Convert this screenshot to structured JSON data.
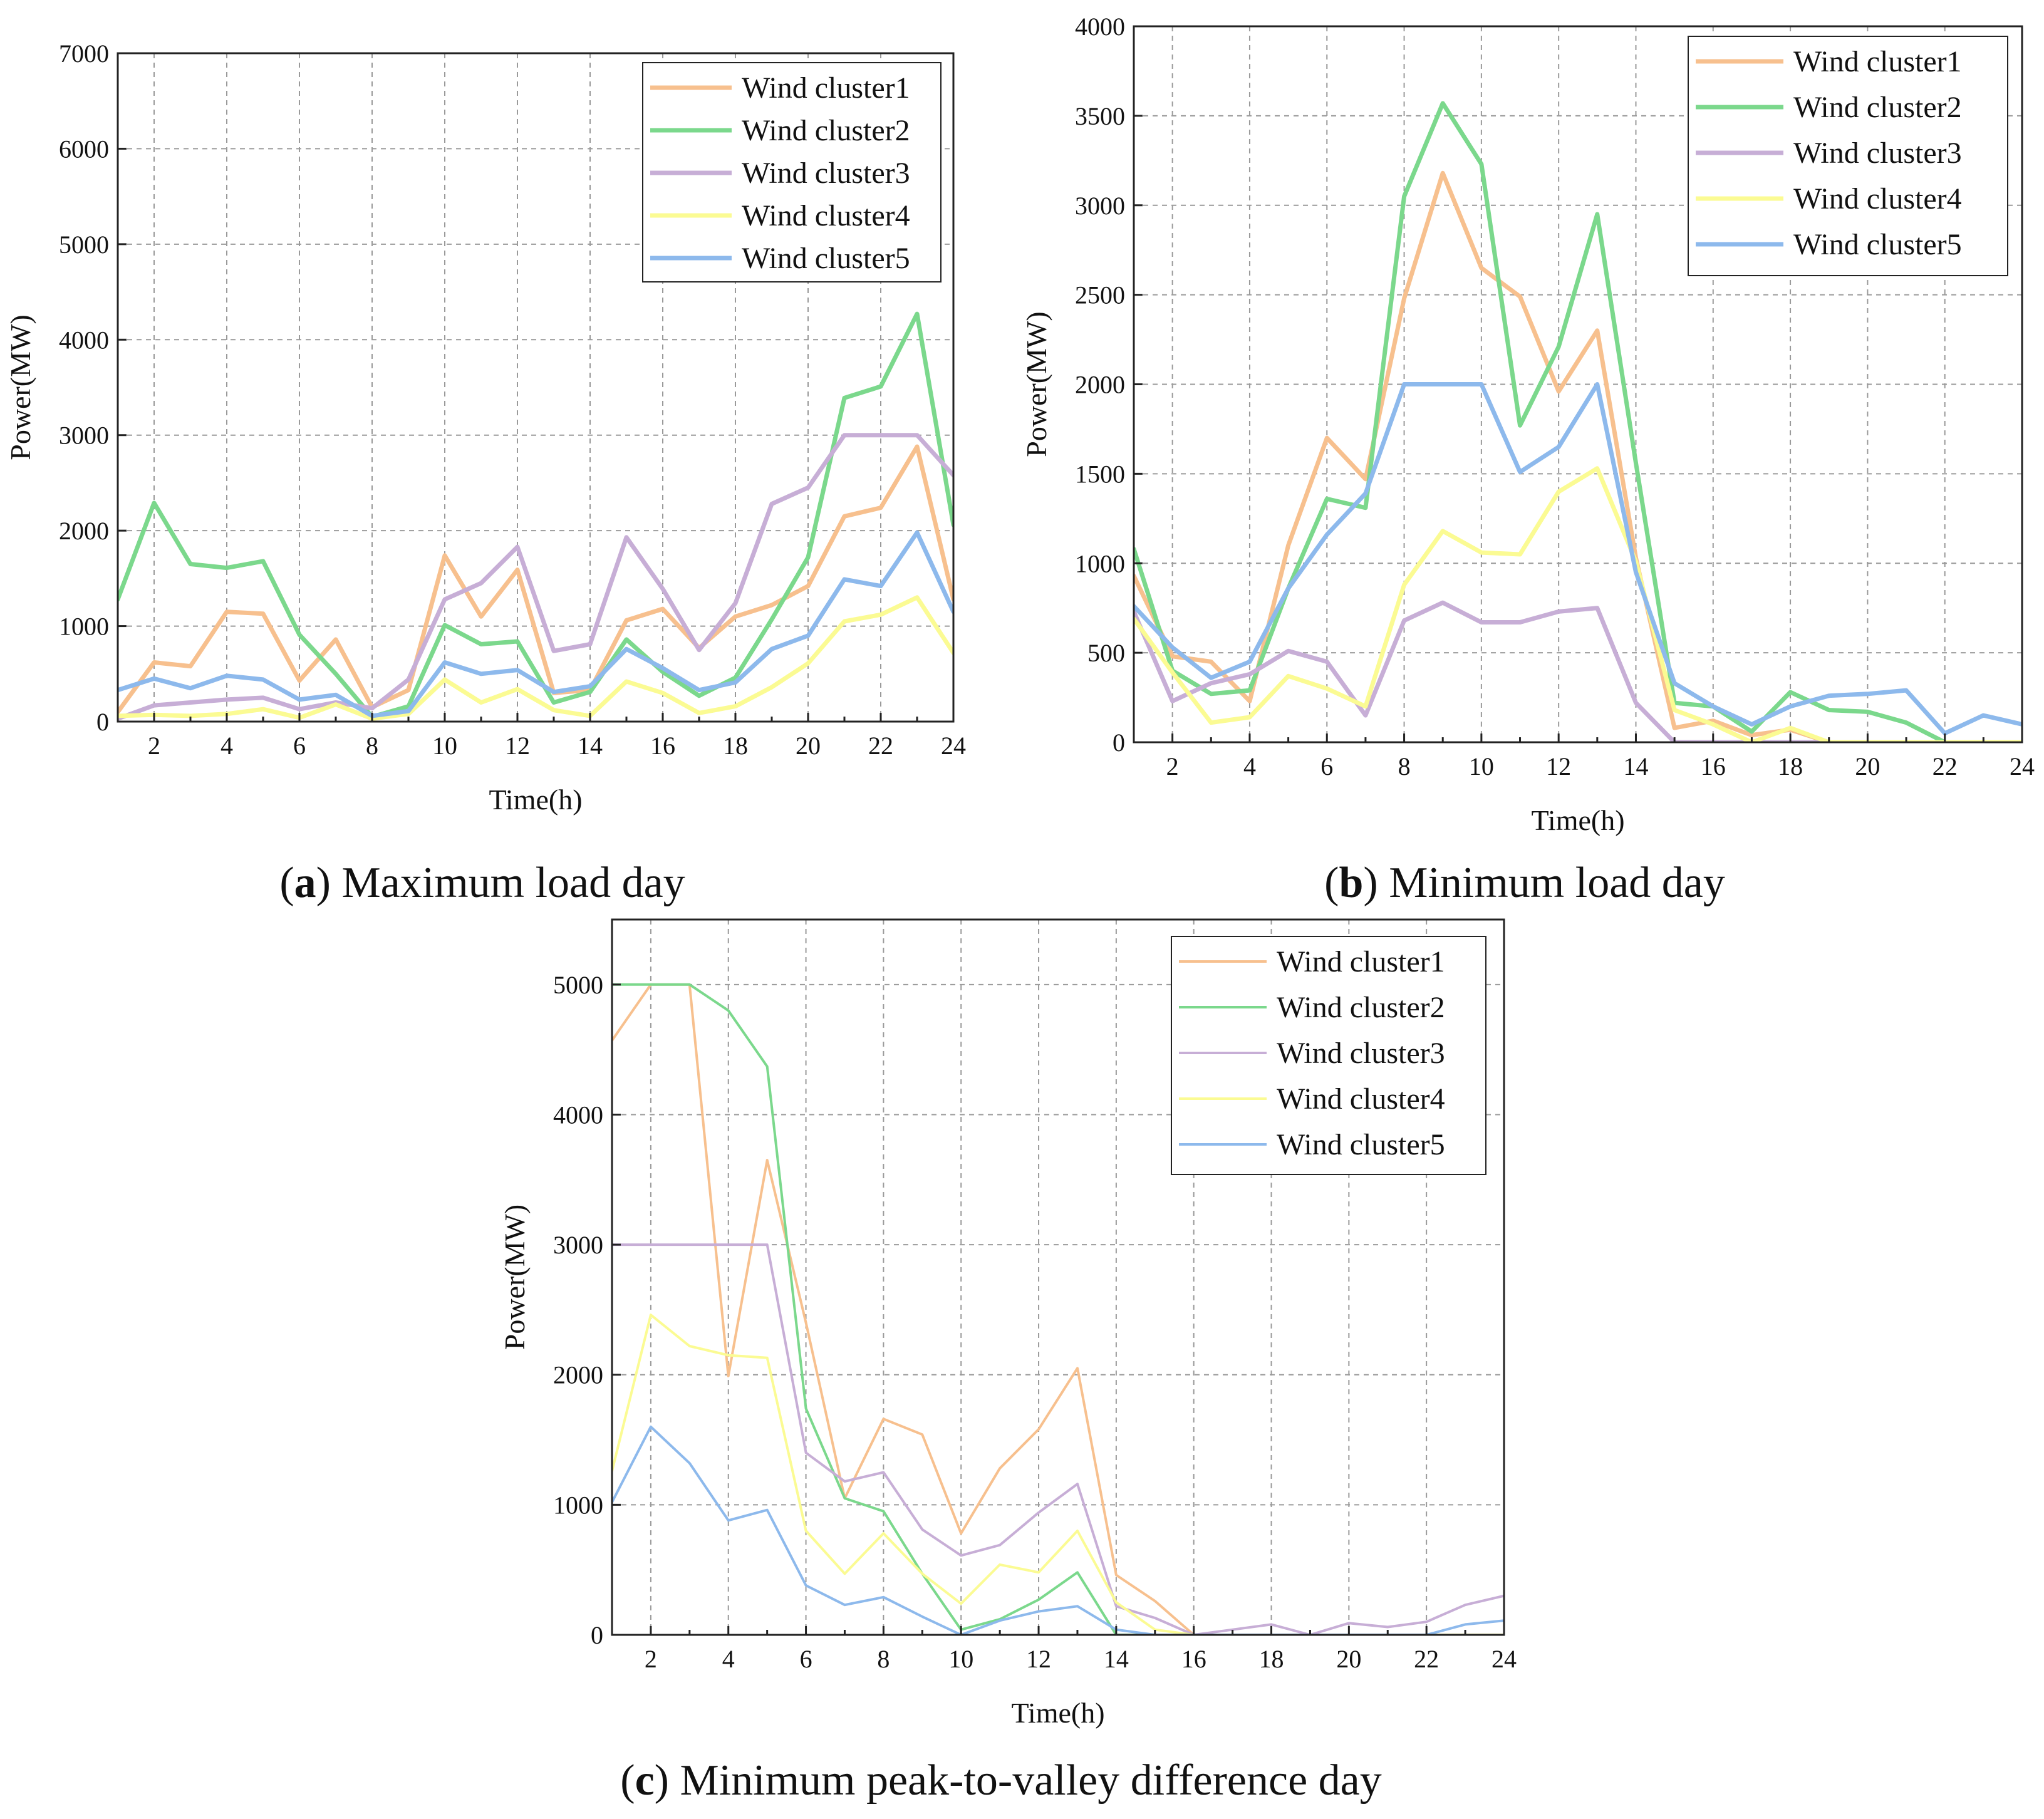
{
  "figure": {
    "colors": {
      "Wind cluster1": "#F7C08E",
      "Wind cluster2": "#7BD88C",
      "Wind cluster3": "#C7AED6",
      "Wind cluster4": "#FBFB93",
      "Wind cluster5": "#8DB9EC"
    }
  },
  "chart_data": [
    {
      "id": "a",
      "type": "line",
      "caption_letter": "a",
      "caption_text": "Maximum load day",
      "xlabel": "Time(h)",
      "ylabel": "Power(MW)",
      "xlim": [
        1,
        24
      ],
      "ylim": [
        0,
        7000
      ],
      "xticks": [
        2,
        4,
        6,
        8,
        10,
        12,
        14,
        16,
        18,
        20,
        22,
        24
      ],
      "yticks": [
        0,
        1000,
        2000,
        3000,
        4000,
        5000,
        6000,
        7000
      ],
      "legend": "top-right",
      "x": [
        1,
        2,
        3,
        4,
        5,
        6,
        7,
        8,
        9,
        10,
        11,
        12,
        13,
        14,
        15,
        16,
        17,
        18,
        19,
        20,
        21,
        22,
        23,
        24
      ],
      "series": [
        {
          "name": "Wind cluster1",
          "values": [
            100,
            620,
            580,
            1150,
            1130,
            430,
            860,
            150,
            330,
            1740,
            1100,
            1590,
            300,
            330,
            1060,
            1180,
            770,
            1100,
            1220,
            1420,
            2150,
            2240,
            2880,
            1280
          ]
        },
        {
          "name": "Wind cluster2",
          "values": [
            1280,
            2290,
            1650,
            1610,
            1680,
            910,
            500,
            50,
            160,
            1010,
            810,
            840,
            200,
            310,
            860,
            520,
            270,
            460,
            1070,
            1720,
            3390,
            3510,
            4270,
            2060
          ]
        },
        {
          "name": "Wind cluster3",
          "values": [
            30,
            170,
            200,
            230,
            250,
            130,
            200,
            140,
            440,
            1280,
            1450,
            1830,
            740,
            810,
            1930,
            1390,
            750,
            1240,
            2280,
            2450,
            3000,
            3000,
            3000,
            2580
          ]
        },
        {
          "name": "Wind cluster4",
          "values": [
            60,
            70,
            60,
            80,
            130,
            40,
            180,
            30,
            80,
            440,
            200,
            340,
            120,
            60,
            420,
            300,
            90,
            160,
            360,
            610,
            1050,
            1120,
            1300,
            720
          ]
        },
        {
          "name": "Wind cluster5",
          "values": [
            330,
            450,
            350,
            480,
            440,
            230,
            280,
            60,
            110,
            620,
            500,
            540,
            310,
            370,
            760,
            560,
            330,
            410,
            760,
            900,
            1490,
            1420,
            1980,
            1150
          ]
        }
      ]
    },
    {
      "id": "b",
      "type": "line",
      "caption_letter": "b",
      "caption_text": "Minimum load day",
      "xlabel": "Time(h)",
      "ylabel": "Power(MW)",
      "xlim": [
        1,
        24
      ],
      "ylim": [
        0,
        4000
      ],
      "xticks": [
        2,
        4,
        6,
        8,
        10,
        12,
        14,
        16,
        18,
        20,
        22,
        24
      ],
      "yticks": [
        0,
        500,
        1000,
        1500,
        2000,
        2500,
        3000,
        3500,
        4000
      ],
      "legend": "top-right",
      "x": [
        1,
        2,
        3,
        4,
        5,
        6,
        7,
        8,
        9,
        10,
        11,
        12,
        13,
        14,
        15,
        16,
        17,
        18,
        19,
        20,
        21,
        22,
        23,
        24
      ],
      "series": [
        {
          "name": "Wind cluster1",
          "values": [
            930,
            480,
            450,
            230,
            1100,
            1700,
            1470,
            2480,
            3180,
            2650,
            2490,
            1960,
            2300,
            1030,
            80,
            120,
            40,
            70,
            0,
            0,
            0,
            0,
            0,
            0
          ]
        },
        {
          "name": "Wind cluster2",
          "values": [
            1080,
            400,
            270,
            290,
            860,
            1360,
            1310,
            3050,
            3570,
            3230,
            1770,
            2210,
            2950,
            1560,
            220,
            200,
            60,
            280,
            180,
            170,
            110,
            0,
            0,
            0
          ]
        },
        {
          "name": "Wind cluster3",
          "values": [
            730,
            230,
            330,
            380,
            510,
            450,
            150,
            680,
            780,
            670,
            670,
            730,
            750,
            220,
            0,
            0,
            0,
            0,
            0,
            0,
            0,
            0,
            0,
            0
          ]
        },
        {
          "name": "Wind cluster4",
          "values": [
            690,
            390,
            110,
            140,
            370,
            300,
            200,
            880,
            1180,
            1060,
            1050,
            1400,
            1530,
            1010,
            180,
            100,
            0,
            80,
            0,
            0,
            0,
            0,
            0,
            0
          ]
        },
        {
          "name": "Wind cluster5",
          "values": [
            760,
            530,
            360,
            450,
            860,
            1160,
            1390,
            2000,
            2000,
            2000,
            1510,
            1650,
            2000,
            950,
            330,
            200,
            100,
            200,
            260,
            270,
            290,
            50,
            150,
            100
          ]
        }
      ]
    },
    {
      "id": "c",
      "type": "line",
      "caption_letter": "c",
      "caption_text": "Minimum peak-to-valley difference day",
      "xlabel": "Time(h)",
      "ylabel": "Power(MW)",
      "xlim": [
        1,
        24
      ],
      "ylim": [
        0,
        5500
      ],
      "xticks": [
        2,
        4,
        6,
        8,
        10,
        12,
        14,
        16,
        18,
        20,
        22,
        24
      ],
      "yticks": [
        0,
        1000,
        2000,
        3000,
        4000,
        5000
      ],
      "legend": "top-right",
      "x": [
        1,
        2,
        3,
        4,
        5,
        6,
        7,
        8,
        9,
        10,
        11,
        12,
        13,
        14,
        15,
        16,
        17,
        18,
        19,
        20,
        21,
        22,
        23,
        24
      ],
      "series": [
        {
          "name": "Wind cluster1",
          "values": [
            4570,
            5000,
            5000,
            1990,
            3650,
            2400,
            1050,
            1660,
            1540,
            780,
            1280,
            1580,
            2050,
            460,
            260,
            0,
            0,
            0,
            0,
            0,
            0,
            0,
            0,
            0
          ]
        },
        {
          "name": "Wind cluster2",
          "values": [
            5000,
            5000,
            5000,
            4800,
            4370,
            1740,
            1050,
            950,
            470,
            40,
            120,
            270,
            480,
            0,
            0,
            0,
            0,
            0,
            0,
            0,
            0,
            0,
            0,
            0
          ]
        },
        {
          "name": "Wind cluster3",
          "values": [
            3000,
            3000,
            3000,
            3000,
            3000,
            1400,
            1180,
            1250,
            810,
            610,
            690,
            940,
            1160,
            220,
            130,
            0,
            40,
            80,
            0,
            90,
            60,
            100,
            230,
            300
          ]
        },
        {
          "name": "Wind cluster4",
          "values": [
            1260,
            2460,
            2220,
            2150,
            2130,
            800,
            470,
            780,
            470,
            240,
            540,
            480,
            800,
            250,
            40,
            0,
            0,
            0,
            0,
            0,
            0,
            0,
            0,
            0
          ]
        },
        {
          "name": "Wind cluster5",
          "values": [
            1020,
            1600,
            1320,
            880,
            960,
            380,
            230,
            290,
            140,
            0,
            110,
            180,
            220,
            40,
            0,
            0,
            0,
            0,
            0,
            0,
            0,
            0,
            80,
            110
          ]
        }
      ]
    }
  ]
}
